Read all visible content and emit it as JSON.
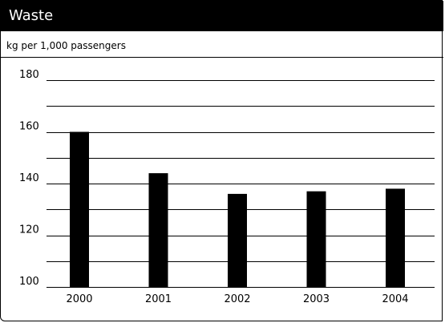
{
  "title": "Waste",
  "subtitle": "kg per 1,000 passengers",
  "colors": {
    "bar": "#000000",
    "header_bg": "#000000",
    "header_text": "#ffffff"
  },
  "chart_data": {
    "type": "bar",
    "title": "Waste",
    "subtitle": "kg per 1,000 passengers",
    "categories": [
      "2000",
      "2001",
      "2002",
      "2003",
      "2004"
    ],
    "values": [
      160,
      144,
      136,
      137,
      138
    ],
    "ylim": [
      100,
      180
    ],
    "yticks": [
      100,
      120,
      140,
      160,
      180
    ],
    "grid": true
  }
}
